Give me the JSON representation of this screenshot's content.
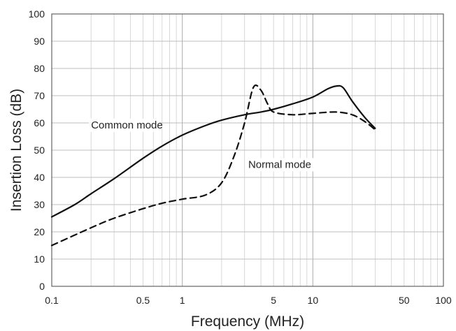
{
  "chart_data": {
    "type": "line",
    "title": "",
    "xlabel": "Frequency (MHz)",
    "ylabel": "Insertion Loss (dB)",
    "x_scale": "log",
    "xlim": [
      0.1,
      100
    ],
    "ylim": [
      0,
      100
    ],
    "grid": true,
    "x_ticks": [
      0.1,
      0.5,
      1,
      5,
      10,
      50,
      100
    ],
    "x_tick_labels": [
      "0.1",
      "0.5",
      "1",
      "5",
      "10",
      "50",
      "100"
    ],
    "y_ticks": [
      0,
      10,
      20,
      30,
      40,
      50,
      60,
      70,
      80,
      90,
      100
    ],
    "y_tick_labels": [
      "0",
      "10",
      "20",
      "30",
      "40",
      "50",
      "60",
      "70",
      "80",
      "90",
      "100"
    ],
    "series": [
      {
        "name": "Common mode",
        "style": "solid",
        "x": [
          0.1,
          0.15,
          0.2,
          0.3,
          0.5,
          0.7,
          1,
          1.5,
          2,
          3,
          4,
          5,
          7,
          10,
          13,
          15,
          17,
          20,
          25,
          30
        ],
        "y": [
          25.5,
          30,
          34,
          39.5,
          47,
          51.5,
          55.5,
          59,
          61,
          63,
          64,
          65,
          67,
          69.5,
          72.5,
          73.5,
          73,
          68,
          62,
          58
        ]
      },
      {
        "name": "Normal mode",
        "style": "dashed",
        "x": [
          0.1,
          0.2,
          0.3,
          0.5,
          0.7,
          1,
          1.5,
          2,
          2.5,
          3,
          3.5,
          4,
          4.5,
          5,
          7,
          10,
          15,
          20,
          25,
          30
        ],
        "y": [
          15,
          21.5,
          25,
          28.5,
          30.5,
          32,
          33.5,
          38,
          48,
          60,
          73,
          72,
          67,
          64,
          63,
          63.5,
          64,
          63,
          60.5,
          57.5
        ]
      }
    ],
    "annotations": [
      {
        "text": "Common mode",
        "x": 0.2,
        "y": 58
      },
      {
        "text": "Normal mode",
        "x": 3.2,
        "y": 43.5
      }
    ]
  }
}
